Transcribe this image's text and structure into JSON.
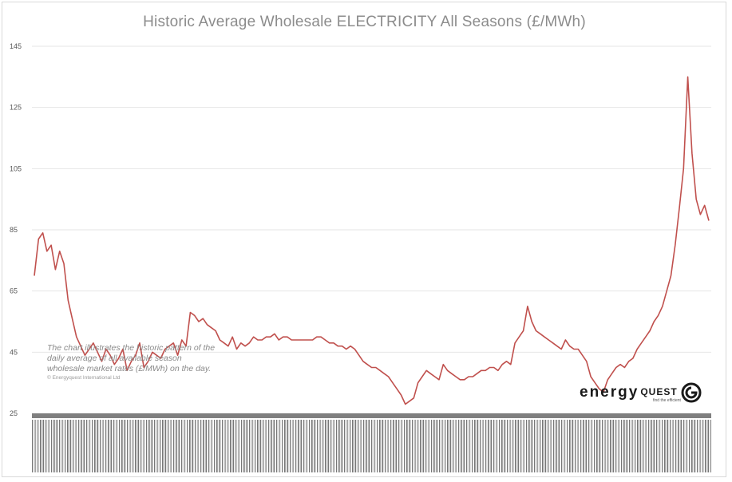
{
  "chart_data": {
    "type": "line",
    "title": "Historic Average Wholesale ELECTRICITY All Seasons (£/MWh)",
    "xlabel": "",
    "ylabel": "",
    "ylim": [
      25,
      145
    ],
    "yticks": [
      "145",
      "125",
      "105",
      "85",
      "65",
      "45",
      "25"
    ],
    "grid": true,
    "legend": "none",
    "series": [
      {
        "color": "#c0504d",
        "x": [
          0,
          1,
          2,
          3,
          4,
          5,
          6,
          7,
          8,
          9,
          10,
          11,
          12,
          13,
          14,
          15,
          16,
          17,
          18,
          19,
          20,
          21,
          22,
          23,
          24,
          25,
          26,
          27,
          28,
          29,
          30,
          31,
          32,
          33,
          34,
          35,
          36,
          37,
          38,
          39,
          40,
          41,
          42,
          43,
          44,
          45,
          46,
          47,
          48,
          49,
          50,
          51,
          52,
          53,
          54,
          55,
          56,
          57,
          58,
          59,
          60,
          61,
          62,
          63,
          64,
          65,
          66,
          67,
          68,
          69,
          70,
          71,
          72,
          73,
          74,
          75,
          76,
          77,
          78,
          79,
          80,
          81,
          82,
          83,
          84,
          85,
          86,
          87,
          88,
          89,
          90,
          91,
          92,
          93,
          94,
          95,
          96,
          97,
          98,
          99,
          100,
          101,
          102,
          103,
          104,
          105,
          106,
          107,
          108,
          109,
          110,
          111,
          112,
          113,
          114,
          115,
          116,
          117,
          118,
          119,
          120,
          121,
          122,
          123,
          124,
          125,
          126,
          127,
          128,
          129,
          130,
          131,
          132,
          133,
          134,
          135,
          136,
          137,
          138,
          139,
          140,
          141,
          142,
          143,
          144,
          145,
          146,
          147,
          148,
          149,
          150,
          151,
          152,
          153,
          154,
          155,
          156,
          157,
          158,
          159,
          160
        ],
        "y": [
          70,
          82,
          84,
          78,
          80,
          72,
          78,
          74,
          62,
          56,
          50,
          47,
          44,
          46,
          48,
          45,
          42,
          46,
          44,
          41,
          43,
          46,
          39,
          42,
          44,
          48,
          40,
          42,
          45,
          44,
          43,
          46,
          47,
          48,
          44,
          49,
          47,
          58,
          57,
          55,
          56,
          54,
          53,
          52,
          49,
          48,
          47,
          50,
          46,
          48,
          47,
          48,
          50,
          49,
          49,
          50,
          50,
          51,
          49,
          50,
          50,
          49,
          49,
          49,
          49,
          49,
          49,
          50,
          50,
          49,
          48,
          48,
          47,
          47,
          46,
          47,
          46,
          44,
          42,
          41,
          40,
          40,
          39,
          38,
          37,
          35,
          33,
          31,
          28,
          29,
          30,
          35,
          37,
          39,
          38,
          37,
          36,
          41,
          39,
          38,
          37,
          36,
          36,
          37,
          37,
          38,
          39,
          39,
          40,
          40,
          39,
          41,
          42,
          41,
          48,
          50,
          52,
          60,
          55,
          52,
          51,
          50,
          49,
          48,
          47,
          46,
          49,
          47,
          46,
          46,
          44,
          42,
          37,
          35,
          33,
          32,
          36,
          38,
          40,
          41,
          40,
          42,
          43,
          46,
          48,
          50,
          52,
          55,
          57,
          60,
          65,
          70,
          80,
          92,
          105,
          135,
          110,
          95,
          90,
          93,
          88
        ]
      }
    ],
    "note": "The chart illustrates the historic pattern of the daily average of all available season wholesale market rates (£/MWh) on the day.",
    "copyright": "© Energyquest International Ltd",
    "logo": {
      "word": "energy",
      "word2": "QUEST",
      "tagline": "find the efficient"
    }
  }
}
